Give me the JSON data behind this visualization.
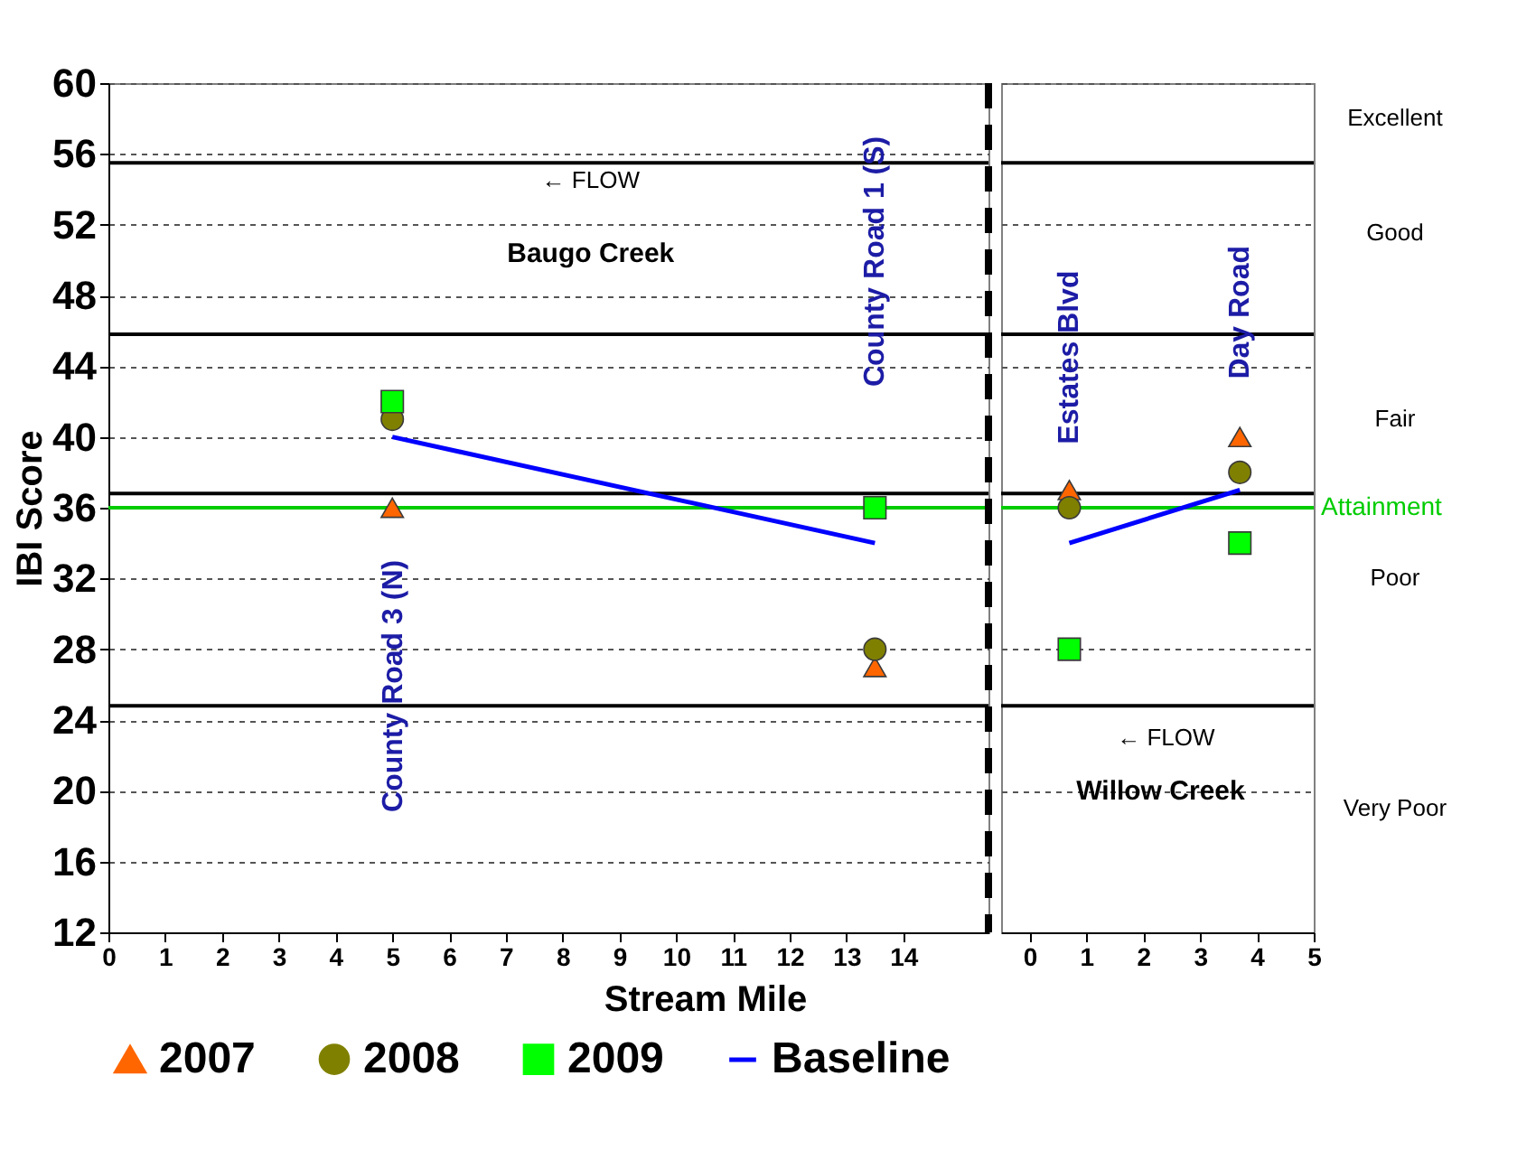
{
  "chart_data": [
    {
      "type": "scatter",
      "xlabel": "Stream Mile",
      "ylabel": "IBI Score",
      "xlim": [
        0,
        15.5
      ],
      "xticks": [
        0,
        1,
        2,
        3,
        4,
        5,
        6,
        7,
        8,
        9,
        10,
        11,
        12,
        13,
        14
      ],
      "ylim": [
        12,
        60
      ],
      "yticks": [
        12,
        16,
        20,
        24,
        28,
        32,
        36,
        40,
        44,
        48,
        52,
        56,
        60
      ],
      "grid": "y",
      "legend": "bottom",
      "series": [
        {
          "name": "2007",
          "type": "scatter",
          "marker": "triangle",
          "color": "#ff6600",
          "x": [
            5,
            13.5
          ],
          "values": [
            36,
            27
          ]
        },
        {
          "name": "2008",
          "type": "scatter",
          "marker": "circle",
          "color": "#808000",
          "x": [
            5,
            13.5
          ],
          "values": [
            41,
            28
          ]
        },
        {
          "name": "2009",
          "type": "scatter",
          "marker": "square",
          "color": "#00ff00",
          "x": [
            5,
            13.5
          ],
          "values": [
            42,
            36
          ]
        },
        {
          "name": "Baseline",
          "type": "line",
          "marker": "none",
          "color": "#0000ff",
          "x": [
            5,
            13.5
          ],
          "values": [
            40,
            34
          ]
        }
      ],
      "ref_lines": [
        {
          "axis": "y",
          "value": 55.5,
          "color": "#000000",
          "line_style": "solid"
        },
        {
          "axis": "y",
          "value": 45.8,
          "color": "#000000",
          "line_style": "solid"
        },
        {
          "axis": "y",
          "value": 36.8,
          "color": "#000000",
          "line_style": "solid"
        },
        {
          "axis": "y",
          "value": 24.8,
          "color": "#000000",
          "line_style": "solid"
        },
        {
          "axis": "y",
          "value": 36,
          "color": "#00cc00",
          "line_style": "solid"
        },
        {
          "axis": "x",
          "value": 15.5,
          "color": "#000000",
          "line_style": "dashed"
        }
      ],
      "annotations": [
        "County Road 3 (N)",
        "County Road 1 (S)",
        "← FLOW",
        "Baugo Creek"
      ]
    },
    {
      "type": "scatter",
      "xlim": [
        -0.5,
        5
      ],
      "xticks": [
        0,
        1,
        2,
        3,
        4,
        5
      ],
      "ylim": [
        12,
        60
      ],
      "yticks": [
        12,
        16,
        20,
        24,
        28,
        32,
        36,
        40,
        44,
        48,
        52,
        56,
        60
      ],
      "grid": "y",
      "tick_labels": "x",
      "series": [
        {
          "name": "2007",
          "type": "scatter",
          "marker": "triangle",
          "color": "#ff6600",
          "x": [
            0.7,
            3.7
          ],
          "values": [
            37,
            40
          ]
        },
        {
          "name": "2008",
          "type": "scatter",
          "marker": "circle",
          "color": "#808000",
          "x": [
            0.7,
            3.7
          ],
          "values": [
            36,
            38
          ]
        },
        {
          "name": "2009",
          "type": "scatter",
          "marker": "square",
          "color": "#00ff00",
          "x": [
            0.7,
            3.7
          ],
          "values": [
            28,
            34
          ]
        },
        {
          "name": "Baseline",
          "type": "line",
          "marker": "none",
          "color": "#0000ff",
          "x": [
            0.7,
            3.7
          ],
          "values": [
            34,
            37
          ]
        }
      ],
      "ref_lines": [
        {
          "axis": "y",
          "value": 55.5,
          "color": "#000000",
          "line_style": "solid"
        },
        {
          "axis": "y",
          "value": 45.8,
          "color": "#000000",
          "line_style": "solid"
        },
        {
          "axis": "y",
          "value": 36.8,
          "color": "#000000",
          "line_style": "solid"
        },
        {
          "axis": "y",
          "value": 24.8,
          "color": "#000000",
          "line_style": "solid"
        },
        {
          "axis": "y",
          "value": 36,
          "label": "Attainment",
          "color": "#00cc00",
          "line_style": "solid"
        }
      ],
      "annotations": [
        "Estates Blvd",
        "Day Road",
        "← FLOW",
        "Willow Creek",
        "Excellent",
        "Good",
        "Fair",
        "Poor",
        "Very Poor"
      ]
    }
  ]
}
